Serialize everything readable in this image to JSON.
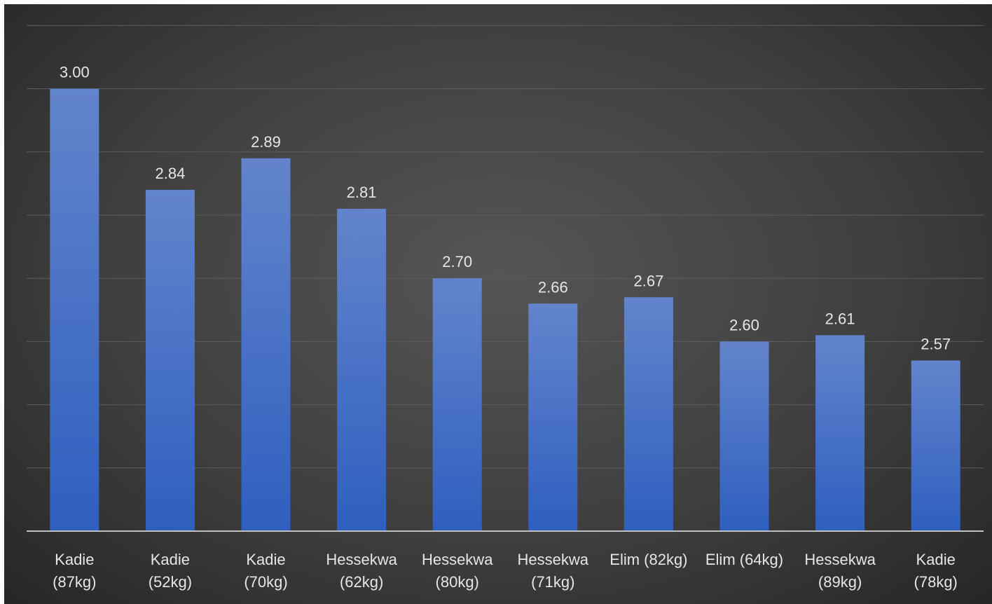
{
  "chart_data": {
    "type": "bar",
    "title": "",
    "xlabel": "",
    "ylabel": "",
    "categories": [
      [
        "Kadie",
        "(87kg)"
      ],
      [
        "Kadie",
        "(52kg)"
      ],
      [
        "Kadie",
        "(70kg)"
      ],
      [
        "Hessekwa",
        "(62kg)"
      ],
      [
        "Hessekwa",
        "(80kg)"
      ],
      [
        "Hessekwa",
        "(71kg)"
      ],
      [
        "Elim (82kg)"
      ],
      [
        "Elim (64kg)"
      ],
      [
        "Hessekwa",
        "(89kg)"
      ],
      [
        "Kadie",
        "(78kg)"
      ]
    ],
    "values": [
      3.0,
      2.84,
      2.89,
      2.81,
      2.7,
      2.66,
      2.67,
      2.6,
      2.61,
      2.57
    ],
    "labels": [
      "3.00",
      "2.84",
      "2.89",
      "2.81",
      "2.70",
      "2.66",
      "2.67",
      "2.60",
      "2.61",
      "2.57"
    ],
    "ylim": [
      2.3,
      3.1
    ],
    "gridlines_at": [
      2.4,
      2.5,
      2.6,
      2.7,
      2.8,
      2.9,
      3.0,
      3.1
    ],
    "grid": true,
    "legend": "none",
    "bar_color_top": "#6384cc",
    "bar_color_bottom": "#2e5fbf",
    "background_color": "#404040"
  }
}
